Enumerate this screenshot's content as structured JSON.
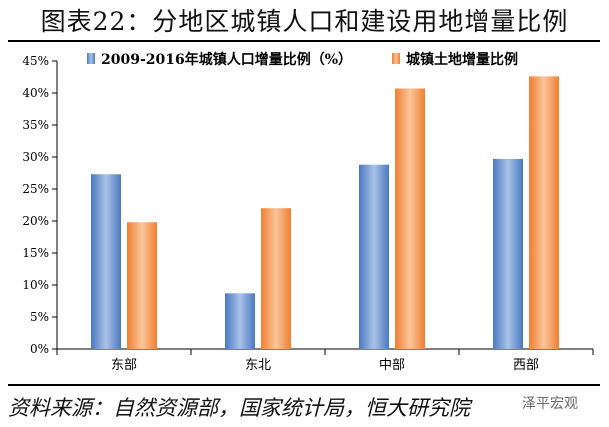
{
  "header": {
    "title": "图表22：分地区城镇人口和建设用地增量比例"
  },
  "footer": {
    "source": "资料来源：自然资源部，国家统计局，恒大研究院",
    "watermark": "泽平宏观"
  },
  "colors": {
    "series1": "#4a78c2",
    "series1_light": "#a9c3e6",
    "series2": "#f07f32",
    "series2_light": "#f9c59a"
  },
  "chart_data": {
    "type": "bar",
    "categories": [
      "东部",
      "东北",
      "中部",
      "西部"
    ],
    "series": [
      {
        "name": "2009-2016年城镇人口增量比例（%）",
        "values": [
          27.3,
          8.7,
          28.8,
          29.7
        ]
      },
      {
        "name": "城镇土地增量比例",
        "values": [
          19.8,
          22.0,
          40.7,
          42.6
        ]
      }
    ],
    "ylim": [
      0,
      45
    ],
    "yticks": [
      "0%",
      "5%",
      "10%",
      "15%",
      "20%",
      "25%",
      "30%",
      "35%",
      "40%",
      "45%"
    ],
    "legend": "top",
    "grid": false
  }
}
